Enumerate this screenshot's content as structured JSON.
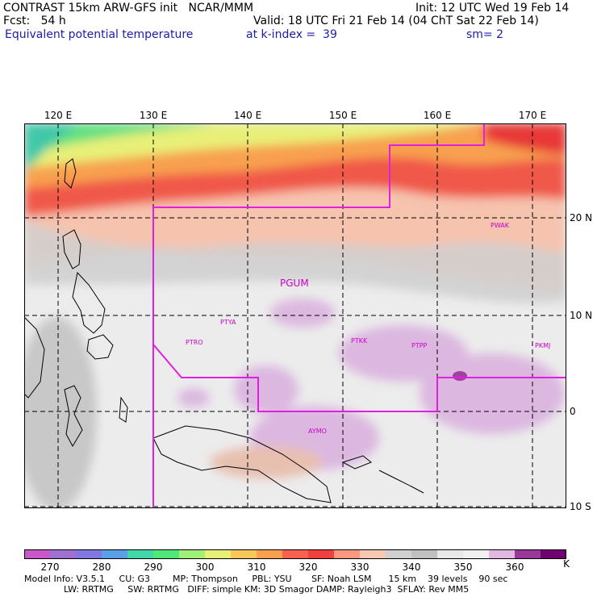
{
  "header": {
    "line1_left": "CONTRAST 15km ARW-GFS init   NCAR/MMM",
    "line1_right": "Init: 12 UTC Wed 19 Feb 14",
    "line2_left": "Fcst:   54 h",
    "line2_right": "Valid: 18 UTC Fri 21 Feb 14 (04 ChT Sat 22 Feb 14)",
    "line3_left": "Equivalent potential temperature",
    "line3_mid": "at k-index =  39",
    "line3_right": "sm= 2"
  },
  "lon_labels": [
    "120 E",
    "130 E",
    "140 E",
    "150 E",
    "160 E",
    "170 E"
  ],
  "lat_labels": [
    "20 N",
    "10 N",
    "0",
    "10 S"
  ],
  "stations": [
    {
      "name": "PWAK",
      "big": false
    },
    {
      "name": "PGUM",
      "big": true
    },
    {
      "name": "PTYA",
      "big": false
    },
    {
      "name": "PTRO",
      "big": false
    },
    {
      "name": "PTKK",
      "big": false
    },
    {
      "name": "PTPP",
      "big": false
    },
    {
      "name": "PKMJ",
      "big": false
    },
    {
      "name": "AYMO",
      "big": false
    }
  ],
  "colorbar": {
    "labels": [
      "270",
      "280",
      "290",
      "300",
      "310",
      "320",
      "330",
      "340",
      "350",
      "360"
    ],
    "unit": "K",
    "colors": [
      "#c858c8",
      "#a070d0",
      "#8078e0",
      "#5aa0e8",
      "#40d8a8",
      "#50e878",
      "#a0f078",
      "#e8f078",
      "#f8c858",
      "#f8a050",
      "#f86050",
      "#f04040",
      "#f89880",
      "#f8c8b0",
      "#d0d0d0",
      "#c0c0c0",
      "#e8e8e8",
      "#f0f0f0",
      "#e0b8e0",
      "#983898",
      "#700070"
    ]
  },
  "footer": {
    "line1": "Model Info: V3.5.1     CU: G3        MP: Thompson     PBL: YSU       SF: Noah LSM      15 km    39 levels    90 sec",
    "line2": "              LW: RRTMG     SW: RRTMG   DIFF: simple KM: 3D Smagor DAMP: Rayleigh3  SFLAY: Rev MM5"
  }
}
